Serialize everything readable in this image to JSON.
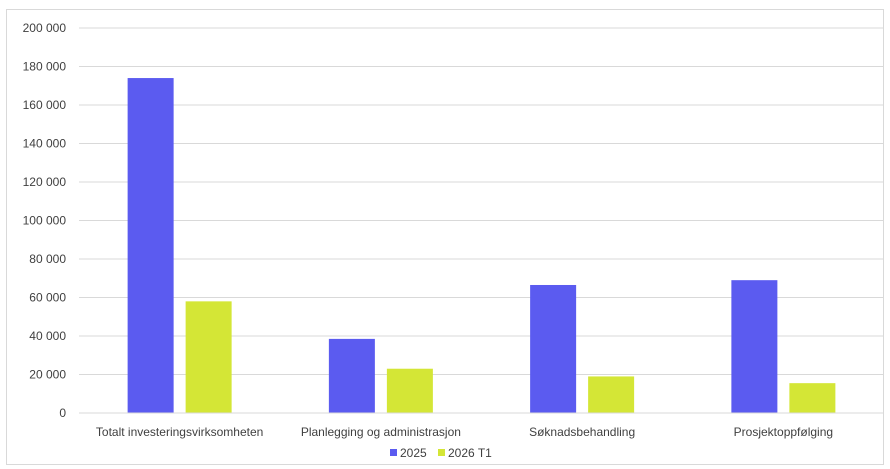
{
  "chart_data": {
    "type": "bar",
    "categories": [
      "Totalt investeringsvirksomheten",
      "Planlegging og administrasjon",
      "Søknadsbehandling",
      "Prosjektoppfølging"
    ],
    "series": [
      {
        "name": "2025",
        "color": "#5b5bf0",
        "values": [
          174000,
          38500,
          66500,
          69000
        ]
      },
      {
        "name": "2026 T1",
        "color": "#d4e636",
        "values": [
          58000,
          23000,
          19000,
          15500
        ]
      }
    ],
    "ylim": [
      0,
      200000
    ],
    "yticks": [
      0,
      20000,
      40000,
      60000,
      80000,
      100000,
      120000,
      140000,
      160000,
      180000,
      200000
    ],
    "ytick_labels": [
      "0",
      "20 000",
      "40 000",
      "60 000",
      "80 000",
      "100 000",
      "120 000",
      "140 000",
      "160 000",
      "180 000",
      "200 000"
    ],
    "grid": true,
    "legend_position": "bottom",
    "gridline_color": "#d9d9d9"
  }
}
